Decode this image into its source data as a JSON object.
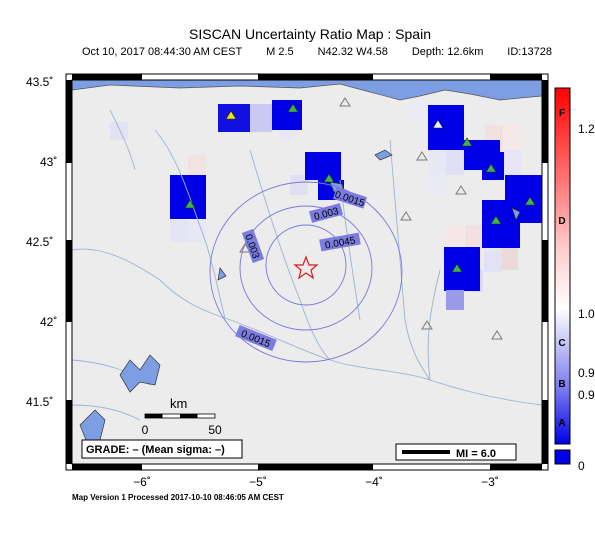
{
  "title": "SISCAN Uncertainty Ratio Map : Spain",
  "subtitle": {
    "time": "Oct 10, 2017 08:44:30 AM CEST",
    "magnitude": "M 2.5",
    "location": "N42.32 W4.58",
    "depth": "Depth: 12.6km",
    "id": "ID:13728"
  },
  "footer": "Map Version 1 Processed 2017-10-10 08:46:05 AM CEST",
  "axes": {
    "lat_ticks": [
      "43.5˚",
      "43˚",
      "42.5˚",
      "42˚",
      "41.5˚"
    ],
    "lon_ticks": [
      "−6˚",
      "−5˚",
      "−4˚",
      "−3˚"
    ]
  },
  "scale_bar": {
    "unit": "km",
    "start_label": "0",
    "end_label": "50"
  },
  "grade_box": "GRADE: – (Mean sigma: –)",
  "mi_legend": "MI = 6.0",
  "contours": [
    "0.0015",
    "0.003",
    "0.0045",
    "0.003",
    "0.0015"
  ],
  "colorbar": {
    "grades": [
      "F",
      "D",
      "C",
      "B",
      "A"
    ],
    "values": [
      "1.2",
      "1.0",
      "0.9",
      "0.9",
      "0"
    ]
  },
  "colors": {
    "ocean": "#7e9ee3",
    "land": "#ececec",
    "river": "#9db3d3",
    "contour": "#7a78d8",
    "contour_label_bg": "#7a7ce0",
    "cell_blue": "#0000e6",
    "epicenter": "#d91a1a"
  },
  "stations": {
    "inside_blue_cells": "green triangles",
    "reference": "open triangles",
    "special": "yellow triangle"
  }
}
